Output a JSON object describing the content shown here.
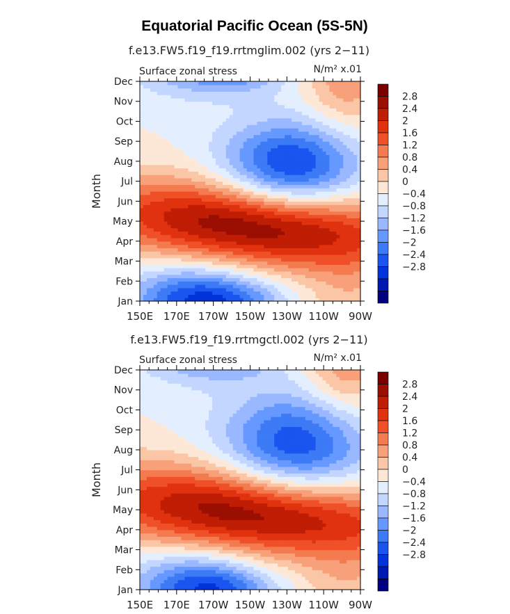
{
  "page": {
    "title": "Equatorial Pacific Ocean (5S-5N)"
  },
  "palette": [
    "#000080",
    "#0019b3",
    "#0033d9",
    "#1a55f0",
    "#3d7af5",
    "#6699ff",
    "#99b8ff",
    "#c2d6ff",
    "#e3eeff",
    "#fde7d6",
    "#fbc6a6",
    "#f8a07a",
    "#f47a4f",
    "#ef5028",
    "#e0320e",
    "#c01d05",
    "#9b0f02",
    "#7a0000"
  ],
  "chart_data": [
    {
      "type": "heatmap",
      "title": "f.e13.FW5.f19_f19.rrtmglim.002 (yrs 2−11)",
      "subtitle_left": "Surface zonal stress",
      "subtitle_right": "N/m² x.01",
      "xlabel": "",
      "ylabel": "Month",
      "x_ticks": [
        "150E",
        "170E",
        "170W",
        "150W",
        "130W",
        "110W",
        "90W"
      ],
      "x_tick_lon": [
        150,
        170,
        190,
        210,
        230,
        250,
        270
      ],
      "xlim_lon": [
        150,
        270
      ],
      "y_ticks": [
        "Jan",
        "Feb",
        "Mar",
        "Apr",
        "May",
        "Jun",
        "Jul",
        "Aug",
        "Sep",
        "Oct",
        "Nov",
        "Dec"
      ],
      "colorbar_labels": [
        "2.8",
        "2.4",
        "2",
        "1.6",
        "1.2",
        "0.8",
        "0.4",
        "0",
        "−0.4",
        "−0.8",
        "−1.2",
        "−1.6",
        "−2",
        "−2.4",
        "−2.8"
      ],
      "contour_levels": [
        -3.2,
        -2.8,
        -2.4,
        -2.0,
        -1.6,
        -1.2,
        -0.8,
        -0.4,
        0,
        0.4,
        0.8,
        1.2,
        1.6,
        2.0,
        2.4,
        2.8,
        3.2
      ],
      "features": [
        {
          "type": "positive",
          "amp": 3.25,
          "lon": 212,
          "lon_slope": -15.0,
          "month_at_lon": 3.8,
          "month_slope": 0.0,
          "sig_lon": 60,
          "sig_month": 1.55
        },
        {
          "type": "negative",
          "amp": -2.6,
          "lon": 232,
          "lon_slope": 0,
          "month_at_lon": 6.75,
          "month_slope": 0.0,
          "sig_lon": 26,
          "sig_month": 1.6
        },
        {
          "type": "negative",
          "amp": -2.2,
          "lon": 178,
          "lon_slope": 0,
          "month_at_lon": 0.1,
          "month_slope": 0.0,
          "sig_lon": 24,
          "sig_month": 1.2
        },
        {
          "type": "negative",
          "amp": -1.6,
          "lon": 205,
          "lon_slope": 0,
          "month_at_lon": 12.0,
          "month_slope": 0.0,
          "sig_lon": 20,
          "sig_month": 0.9
        },
        {
          "type": "positive",
          "amp": 1.1,
          "lon": 262,
          "lon_slope": 0,
          "month_at_lon": 11.0,
          "month_slope": 0.0,
          "sig_lon": 16,
          "sig_month": 1.8
        }
      ]
    },
    {
      "type": "heatmap",
      "title": "f.e13.FW5.f19_f19.rrtmgctl.002 (yrs 2−11)",
      "subtitle_left": "Surface zonal stress",
      "subtitle_right": "N/m² x.01",
      "xlabel": "",
      "ylabel": "Month",
      "x_ticks": [
        "150E",
        "170E",
        "170W",
        "150W",
        "130W",
        "110W",
        "90W"
      ],
      "x_tick_lon": [
        150,
        170,
        190,
        210,
        230,
        250,
        270
      ],
      "xlim_lon": [
        150,
        270
      ],
      "y_ticks": [
        "Jan",
        "Feb",
        "Mar",
        "Apr",
        "May",
        "Jun",
        "Jul",
        "Aug",
        "Sep",
        "Oct",
        "Nov",
        "Dec"
      ],
      "colorbar_labels": [
        "2.8",
        "2.4",
        "2",
        "1.6",
        "1.2",
        "0.8",
        "0.4",
        "0",
        "−0.4",
        "−0.8",
        "−1.2",
        "−1.6",
        "−2",
        "−2.4",
        "−2.8"
      ],
      "contour_levels": [
        -3.2,
        -2.8,
        -2.4,
        -2.0,
        -1.6,
        -1.2,
        -0.8,
        -0.4,
        0,
        0.4,
        0.8,
        1.2,
        1.6,
        2.0,
        2.4,
        2.8,
        3.2
      ],
      "features": [
        {
          "type": "positive",
          "amp": 3.2,
          "lon": 210,
          "lon_slope": -15.0,
          "month_at_lon": 3.9,
          "month_slope": 0.0,
          "sig_lon": 62,
          "sig_month": 1.6
        },
        {
          "type": "negative",
          "amp": -2.4,
          "lon": 235,
          "lon_slope": 0,
          "month_at_lon": 7.2,
          "month_slope": 0.0,
          "sig_lon": 28,
          "sig_month": 1.9
        },
        {
          "type": "negative",
          "amp": -2.1,
          "lon": 180,
          "lon_slope": 0,
          "month_at_lon": 0.2,
          "month_slope": 0.0,
          "sig_lon": 24,
          "sig_month": 1.2
        },
        {
          "type": "negative",
          "amp": -1.2,
          "lon": 200,
          "lon_slope": 0,
          "month_at_lon": 12.0,
          "month_slope": 0.0,
          "sig_lon": 18,
          "sig_month": 0.8
        },
        {
          "type": "positive",
          "amp": 1.2,
          "lon": 262,
          "lon_slope": 0,
          "month_at_lon": 11.0,
          "month_slope": 0.0,
          "sig_lon": 16,
          "sig_month": 1.8
        }
      ]
    }
  ]
}
